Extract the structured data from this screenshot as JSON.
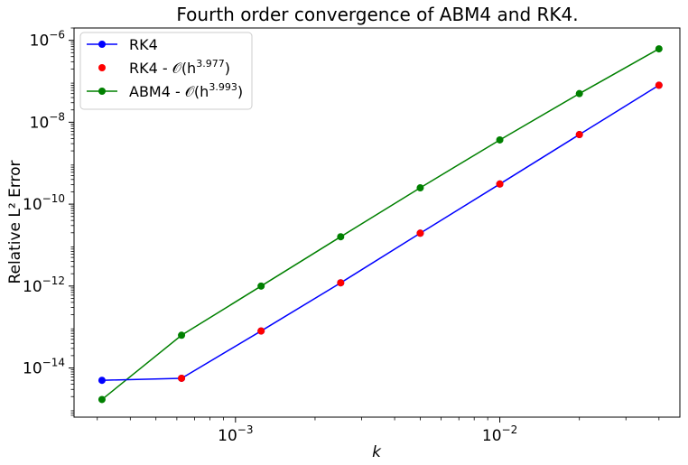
{
  "chart_data": {
    "type": "line",
    "title": "Fourth order convergence of ABM4 and RK4.",
    "xlabel": "k",
    "ylabel": "Relative L² Error",
    "xscale": "log",
    "yscale": "log",
    "xlim": [
      0.000245,
      0.048
    ],
    "ylim": [
      6.3e-16,
      2e-06
    ],
    "x_ticks": [
      {
        "value": 0.001,
        "base": "10",
        "exp": "−3"
      },
      {
        "value": 0.01,
        "base": "10",
        "exp": "−2"
      }
    ],
    "y_ticks": [
      {
        "value": 1e-14,
        "base": "10",
        "exp": "−14"
      },
      {
        "value": 1e-12,
        "base": "10",
        "exp": "−12"
      },
      {
        "value": 1e-10,
        "base": "10",
        "exp": "−10"
      },
      {
        "value": 1e-08,
        "base": "10",
        "exp": "−8"
      },
      {
        "value": 1e-06,
        "base": "10",
        "exp": "−6"
      }
    ],
    "grid": false,
    "legend_position": "upper-left",
    "series": [
      {
        "name": "RK4",
        "label_main": "RK4",
        "label_sup": "",
        "style": "line-marker",
        "color": "#0000ff",
        "x": [
          0.0003125,
          0.000625,
          0.00125,
          0.0025,
          0.005,
          0.01,
          0.02,
          0.04
        ],
        "y": [
          5e-15,
          5.6e-15,
          8e-14,
          1.2e-12,
          1.95e-11,
          3.1e-10,
          5e-09,
          8e-08
        ]
      },
      {
        "name": "RK4 - O(h^3.977)",
        "label_main": "RK4 - 𝒪(h",
        "label_sup": "3.977",
        "style": "marker",
        "color": "#ff0000",
        "x": [
          0.000625,
          0.00125,
          0.0025,
          0.005,
          0.01,
          0.02,
          0.04
        ],
        "y": [
          5.6e-15,
          8e-14,
          1.2e-12,
          1.95e-11,
          3.1e-10,
          5e-09,
          8e-08
        ]
      },
      {
        "name": "ABM4 - O(h^3.993)",
        "label_main": "ABM4 - 𝒪(h",
        "label_sup": "3.993",
        "style": "line-marker",
        "color": "#008000",
        "x": [
          0.0003125,
          0.000625,
          0.00125,
          0.0025,
          0.005,
          0.01,
          0.02,
          0.04
        ],
        "y": [
          1.7e-15,
          6.3e-14,
          1e-12,
          1.6e-11,
          2.5e-10,
          3.7e-09,
          5e-08,
          6.2e-07
        ]
      }
    ]
  }
}
